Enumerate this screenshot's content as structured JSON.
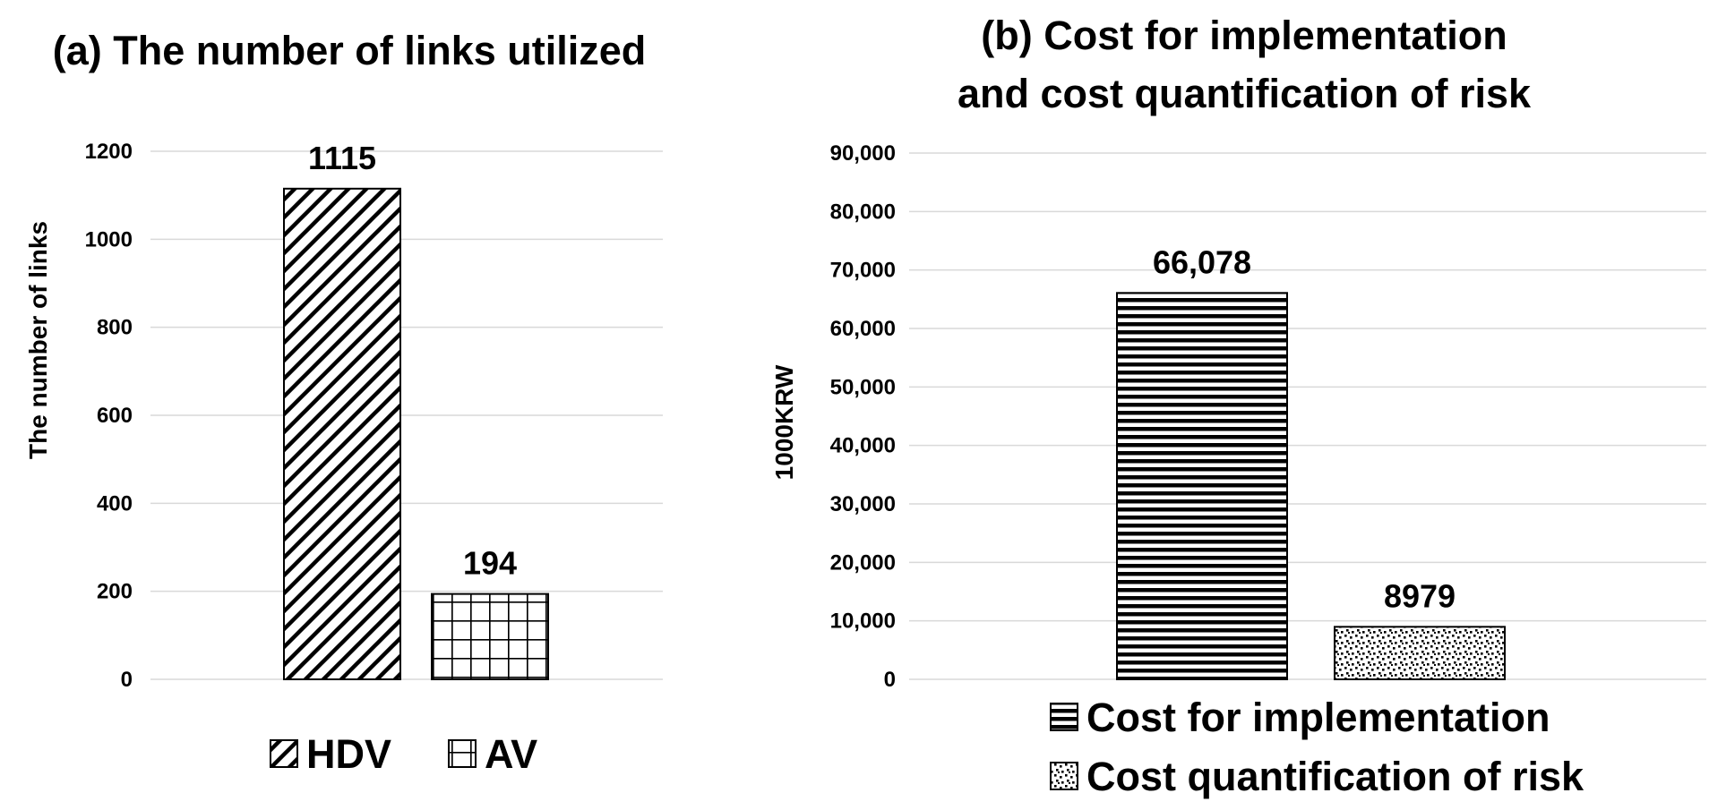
{
  "chart_data": [
    {
      "type": "bar",
      "title": "(a) The number of links utilized",
      "xlabel": "",
      "ylabel": "The number of links",
      "ylim": [
        0,
        1200
      ],
      "yticks": [
        0,
        200,
        400,
        600,
        800,
        1000,
        1200
      ],
      "ytick_labels": [
        "0",
        "200",
        "400",
        "600",
        "800",
        "1000",
        "1200"
      ],
      "grid": true,
      "legend_position": "bottom",
      "series": [
        {
          "name": "HDV",
          "values": [
            1115
          ],
          "label": "1115",
          "pattern": "diagonal-hatch"
        },
        {
          "name": "AV",
          "values": [
            194
          ],
          "label": "194",
          "pattern": "grid"
        }
      ]
    },
    {
      "type": "bar",
      "title_lines": [
        "(b) Cost for implementation",
        "and cost quantification of risk"
      ],
      "xlabel": "",
      "ylabel": "1000KRW",
      "ylim": [
        0,
        90000
      ],
      "yticks": [
        0,
        10000,
        20000,
        30000,
        40000,
        50000,
        60000,
        70000,
        80000,
        90000
      ],
      "ytick_labels": [
        "0",
        "10,000",
        "20,000",
        "30,000",
        "40,000",
        "50,000",
        "60,000",
        "70,000",
        "80,000",
        "90,000"
      ],
      "grid": true,
      "legend_position": "bottom",
      "series": [
        {
          "name": "Cost for implementation",
          "values": [
            66078
          ],
          "label": "66,078",
          "pattern": "horizontal-lines"
        },
        {
          "name": "Cost quantification of risk",
          "values": [
            8979
          ],
          "label": "8979",
          "pattern": "dots"
        }
      ]
    }
  ],
  "colors": {
    "ink": "#000000",
    "grid": "#d9d9d9",
    "background": "#ffffff"
  }
}
